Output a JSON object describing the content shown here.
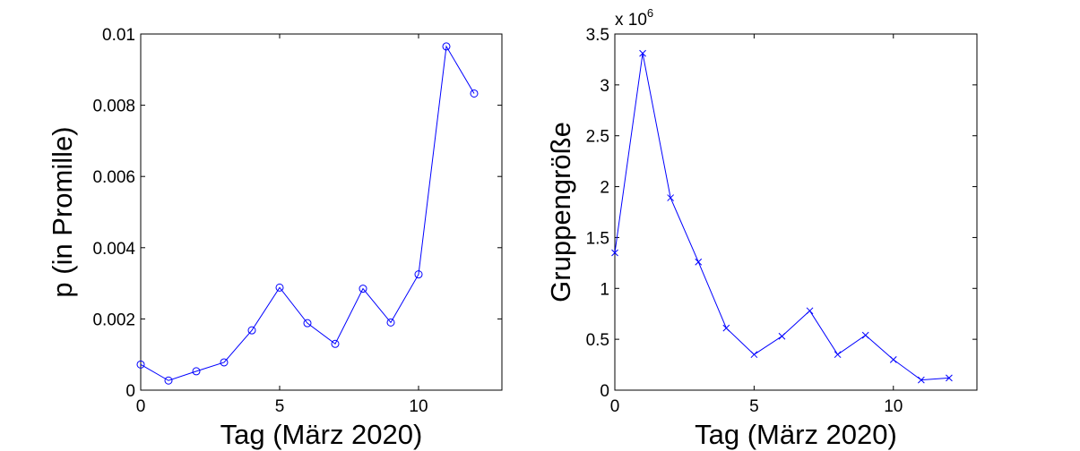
{
  "chart_data": [
    {
      "type": "line",
      "xlabel": "Tag (März 2020)",
      "ylabel": "p (in Promille)",
      "xlim": [
        0,
        13
      ],
      "ylim": [
        0,
        0.01
      ],
      "xticks": [
        0,
        5,
        10
      ],
      "yticks": [
        0,
        0.002,
        0.004,
        0.006,
        0.008,
        0.01
      ],
      "xtick_labels": [
        "0",
        "5",
        "10"
      ],
      "ytick_labels": [
        "0",
        "0.002",
        "0.004",
        "0.006",
        "0.008",
        "0.01"
      ],
      "marker": "circle",
      "color": "#0000ff",
      "grid": false,
      "series": [
        {
          "x": [
            0,
            1,
            2,
            3,
            4,
            5,
            6,
            7,
            8,
            9,
            10,
            11,
            12
          ],
          "y": [
            0.00072,
            0.00027,
            0.00053,
            0.00078,
            0.00168,
            0.00288,
            0.00188,
            0.0013,
            0.00285,
            0.0019,
            0.00325,
            0.00965,
            0.00833
          ]
        }
      ]
    },
    {
      "type": "line",
      "xlabel": "Tag (März 2020)",
      "ylabel": "Gruppengröße",
      "xlim": [
        0,
        13
      ],
      "ylim": [
        0,
        3500000
      ],
      "xticks": [
        0,
        5,
        10
      ],
      "yticks": [
        0,
        500000,
        1000000,
        1500000,
        2000000,
        2500000,
        3000000,
        3500000
      ],
      "xtick_labels": [
        "0",
        "5",
        "10"
      ],
      "ytick_labels": [
        "0",
        "0.5",
        "1",
        "1.5",
        "2",
        "2.5",
        "3",
        "3.5"
      ],
      "exponent_base": "x 10",
      "exponent_power": "6",
      "marker": "x",
      "color": "#0000ff",
      "grid": false,
      "series": [
        {
          "x": [
            0,
            1,
            2,
            3,
            4,
            5,
            6,
            7,
            8,
            9,
            10,
            11,
            12
          ],
          "y": [
            1350000,
            3310000,
            1890000,
            1260000,
            610000,
            350000,
            530000,
            780000,
            350000,
            540000,
            300000,
            100000,
            120000
          ]
        }
      ]
    }
  ]
}
